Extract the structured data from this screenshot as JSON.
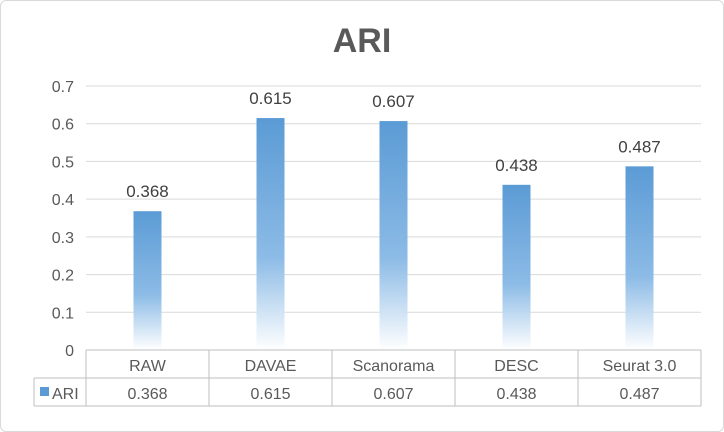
{
  "chart_data": {
    "type": "bar",
    "title": "ARI",
    "categories": [
      "RAW",
      "DAVAE",
      "Scanorama",
      "DESC",
      "Seurat 3.0"
    ],
    "series": [
      {
        "name": "ARI",
        "values": [
          0.368,
          0.615,
          0.607,
          0.438,
          0.487
        ],
        "color": "#5b9bd5"
      }
    ],
    "value_labels": [
      "0.368",
      "0.615",
      "0.607",
      "0.438",
      "0.487"
    ],
    "ylim": [
      0,
      0.7
    ],
    "yticks": [
      0,
      0.1,
      0.2,
      0.3,
      0.4,
      0.5,
      0.6,
      0.7
    ],
    "ytick_labels": [
      "0",
      "0.1",
      "0.2",
      "0.3",
      "0.4",
      "0.5",
      "0.6",
      "0.7"
    ],
    "grid": true,
    "data_table": true,
    "colors": {
      "bar": "#5b9bd5",
      "grid": "#d9d9d9",
      "text": "#595959"
    }
  }
}
